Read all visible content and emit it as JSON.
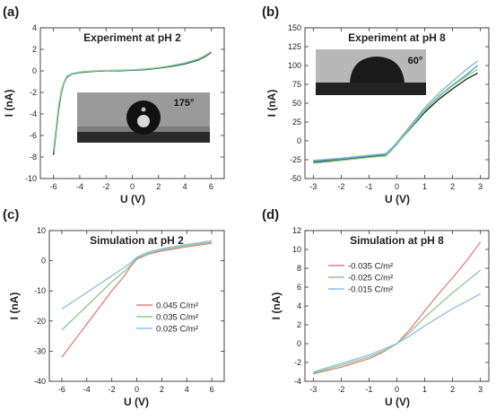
{
  "chart_data": [
    {
      "panel": "(a)",
      "type": "line",
      "title": "Experiment at pH 2",
      "xlabel": "U (V)",
      "ylabel": "I (nA)",
      "xlim": [
        -7,
        7
      ],
      "ylim": [
        -10,
        4
      ],
      "xticks": [
        "-6",
        "-4",
        "-2",
        "0",
        "2",
        "4",
        "6"
      ],
      "yticks": [
        "-10",
        "-8",
        "-6",
        "-4",
        "-2",
        "0",
        "2",
        "4"
      ],
      "inset_label": "175°",
      "colors": [
        "#1a1a1a",
        "#4aa3a3",
        "#8ccf8c"
      ],
      "series": [
        {
          "x": [
            -6,
            -5.8,
            -5.6,
            -5.4,
            -5.2,
            -5,
            -4.6,
            -4,
            -3,
            -2,
            -1,
            0,
            1,
            2,
            3,
            4,
            5,
            5.5,
            6
          ],
          "y": [
            -7.8,
            -5.6,
            -3.5,
            -2.0,
            -1.1,
            -0.6,
            -0.3,
            -0.15,
            -0.05,
            0.0,
            0.02,
            0.05,
            0.12,
            0.25,
            0.42,
            0.65,
            1.0,
            1.3,
            1.7
          ]
        },
        {
          "x": [
            -6,
            -5.8,
            -5.6,
            -5.4,
            -5.2,
            -5,
            -4.6,
            -4,
            -3,
            -2,
            -1,
            0,
            1,
            2,
            3,
            4,
            5,
            5.5,
            6
          ],
          "y": [
            -7.6,
            -5.4,
            -3.3,
            -1.9,
            -1.05,
            -0.55,
            -0.28,
            -0.12,
            -0.03,
            0.02,
            0.05,
            0.08,
            0.15,
            0.28,
            0.46,
            0.7,
            1.05,
            1.35,
            1.75
          ]
        },
        {
          "x": [
            -6,
            -5.8,
            -5.6,
            -5.4,
            -5.2,
            -5,
            -4.6,
            -4,
            -3,
            -2,
            -1,
            0,
            1,
            2,
            3,
            4,
            5,
            5.5,
            6
          ],
          "y": [
            -7.4,
            -5.2,
            -3.1,
            -1.8,
            -1.0,
            -0.5,
            -0.25,
            -0.1,
            0.0,
            0.04,
            0.07,
            0.1,
            0.18,
            0.3,
            0.5,
            0.75,
            1.1,
            1.4,
            1.8
          ]
        }
      ]
    },
    {
      "panel": "(b)",
      "type": "line",
      "title": "Experiment at pH 8",
      "xlabel": "U (V)",
      "ylabel": "I (nA)",
      "xlim": [
        -3.3,
        3.3
      ],
      "ylim": [
        -50,
        150
      ],
      "xticks": [
        "-3",
        "-2",
        "-1",
        "0",
        "1",
        "2",
        "3"
      ],
      "yticks": [
        "-50",
        "-25",
        "0",
        "25",
        "50",
        "75",
        "100",
        "125",
        "150"
      ],
      "inset_label": "60°",
      "colors": [
        "#1a1a1a",
        "#4aa3a3",
        "#8ccf8c",
        "#7fb2d9"
      ],
      "series": [
        {
          "x": [
            -3,
            -2,
            -1,
            -0.4,
            -0.2,
            0,
            0.5,
            1,
            1.5,
            2,
            2.5,
            2.9
          ],
          "y": [
            -28,
            -25,
            -21,
            -19,
            -12,
            -4,
            17,
            38,
            55,
            69,
            82,
            90
          ]
        },
        {
          "x": [
            -3,
            -2,
            -1,
            -0.4,
            -0.2,
            0,
            0.5,
            1,
            1.5,
            2,
            2.5,
            2.9
          ],
          "y": [
            -27,
            -24,
            -20,
            -18,
            -11,
            -3,
            19,
            41,
            59,
            74,
            88,
            100
          ]
        },
        {
          "x": [
            -3,
            -2,
            -1,
            -0.4,
            -0.2,
            0,
            0.5,
            1,
            1.5,
            2,
            2.5,
            2.9
          ],
          "y": [
            -30,
            -26,
            -22,
            -20,
            -13,
            -5,
            18,
            40,
            58,
            73,
            86,
            95
          ]
        },
        {
          "x": [
            -3,
            -2,
            -1,
            -0.4,
            -0.2,
            0,
            0.5,
            1,
            1.5,
            2,
            2.5,
            2.9
          ],
          "y": [
            -26,
            -23,
            -19,
            -17,
            -10,
            -2,
            21,
            44,
            63,
            79,
            95,
            106
          ]
        }
      ]
    },
    {
      "panel": "(c)",
      "type": "line",
      "title": "Simulation at pH 2",
      "xlabel": "U (V)",
      "ylabel": "I (nA)",
      "xlim": [
        -7,
        7
      ],
      "ylim": [
        -40,
        10
      ],
      "xticks": [
        "-6",
        "-4",
        "-2",
        "0",
        "2",
        "4",
        "6"
      ],
      "yticks": [
        "-40",
        "-30",
        "-20",
        "-10",
        "0",
        "10"
      ],
      "legend_position": "lower-right",
      "series": [
        {
          "name": "0.045 C/m²",
          "color": "#e08080",
          "x": [
            -6,
            -4,
            -2,
            -1,
            -0.5,
            0,
            1,
            2,
            4,
            6
          ],
          "y": [
            -32,
            -21,
            -10,
            -5,
            -2,
            0.5,
            2.3,
            3.2,
            4.6,
            5.8
          ]
        },
        {
          "name": "0.035 C/m²",
          "color": "#8cc98c",
          "x": [
            -6,
            -4,
            -2,
            -1,
            -0.5,
            0,
            1,
            2,
            4,
            6
          ],
          "y": [
            -23,
            -15,
            -7,
            -3.5,
            -1.5,
            0.8,
            2.6,
            3.6,
            5.0,
            6.2
          ]
        },
        {
          "name": "0.025 C/m²",
          "color": "#8fc0e0",
          "x": [
            -6,
            -4,
            -2,
            -1,
            -0.5,
            0,
            1,
            2,
            4,
            6
          ],
          "y": [
            -16,
            -10.5,
            -5,
            -2.2,
            -0.7,
            1.2,
            3.0,
            4.0,
            5.4,
            6.6
          ]
        }
      ]
    },
    {
      "panel": "(d)",
      "type": "line",
      "title": "Simulation at pH 8",
      "xlabel": "U (V)",
      "ylabel": "I (nA)",
      "xlim": [
        -3.3,
        3.3
      ],
      "ylim": [
        -4,
        12
      ],
      "xticks": [
        "-3",
        "-2",
        "-1",
        "0",
        "1",
        "2",
        "3"
      ],
      "yticks": [
        "-4",
        "-2",
        "0",
        "2",
        "4",
        "6",
        "8",
        "10",
        "12"
      ],
      "legend_position": "upper-left",
      "series": [
        {
          "name": "-0.035 C/m²",
          "color": "#e08080",
          "x": [
            -3,
            -2,
            -1,
            -0.5,
            0,
            0.5,
            1,
            1.5,
            2,
            2.5,
            3
          ],
          "y": [
            -3.2,
            -2.5,
            -1.6,
            -0.9,
            0,
            1.6,
            3.5,
            5.3,
            7.0,
            8.8,
            10.8
          ]
        },
        {
          "name": "-0.025 C/m²",
          "color": "#8cc98c",
          "x": [
            -3,
            -2,
            -1,
            -0.5,
            0,
            0.5,
            1,
            1.5,
            2,
            2.5,
            3
          ],
          "y": [
            -3.1,
            -2.3,
            -1.4,
            -0.8,
            0,
            1.3,
            2.8,
            4.1,
            5.4,
            6.6,
            7.8
          ]
        },
        {
          "name": "-0.015 C/m²",
          "color": "#8fc0e0",
          "x": [
            -3,
            -2,
            -1,
            -0.5,
            0,
            0.5,
            1,
            1.5,
            2,
            2.5,
            3
          ],
          "y": [
            -3.0,
            -2.1,
            -1.2,
            -0.6,
            0,
            0.9,
            1.9,
            2.8,
            3.7,
            4.5,
            5.3
          ]
        }
      ]
    }
  ]
}
